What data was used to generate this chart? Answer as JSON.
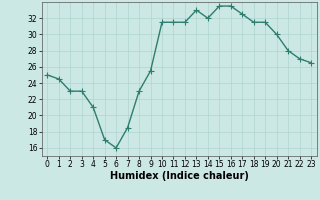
{
  "x": [
    0,
    1,
    2,
    3,
    4,
    5,
    6,
    7,
    8,
    9,
    10,
    11,
    12,
    13,
    14,
    15,
    16,
    17,
    18,
    19,
    20,
    21,
    22,
    23
  ],
  "y": [
    25,
    24.5,
    23,
    23,
    21,
    17,
    16,
    18.5,
    23,
    25.5,
    31.5,
    31.5,
    31.5,
    33,
    32,
    33.5,
    33.5,
    32.5,
    31.5,
    31.5,
    30,
    28,
    27,
    26.5
  ],
  "line_color": "#2e7d6e",
  "marker_color": "#2e7d6e",
  "bg_color": "#cce8e5",
  "grid_color": "#b0d4d0",
  "xlabel": "Humidex (Indice chaleur)",
  "xlim": [
    -0.5,
    23.5
  ],
  "ylim": [
    15,
    34
  ],
  "yticks": [
    16,
    18,
    20,
    22,
    24,
    26,
    28,
    30,
    32
  ],
  "xticks": [
    0,
    1,
    2,
    3,
    4,
    5,
    6,
    7,
    8,
    9,
    10,
    11,
    12,
    13,
    14,
    15,
    16,
    17,
    18,
    19,
    20,
    21,
    22,
    23
  ],
  "tick_fontsize": 5.5,
  "label_fontsize": 7.0,
  "line_width": 1.0,
  "marker_size": 2.5
}
